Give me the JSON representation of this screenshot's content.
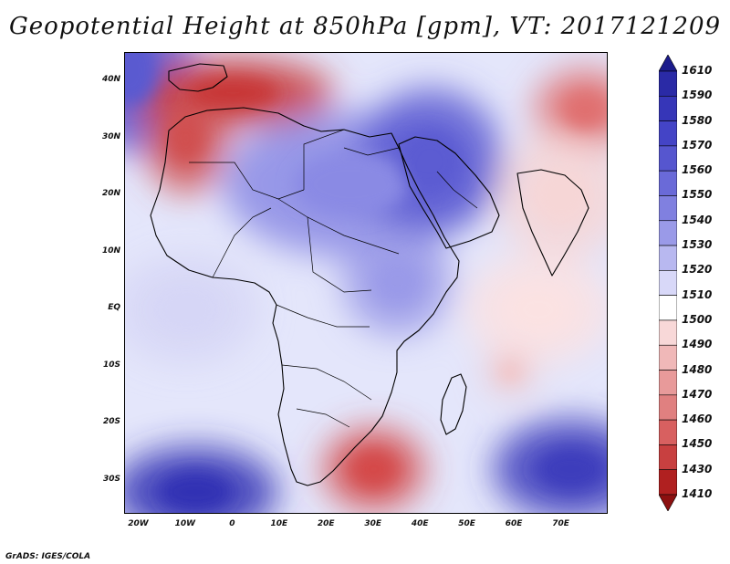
{
  "title": "Geopotential Height at 850hPa [gpm], VT: 2017121209",
  "footer": "GrADS: IGES/COLA",
  "lat_labels": [
    "40N",
    "30N",
    "20N",
    "10N",
    "EQ",
    "10S",
    "20S",
    "30S"
  ],
  "lat_values": [
    40,
    30,
    20,
    10,
    0,
    -10,
    -20,
    -30
  ],
  "lon_labels": [
    "20W",
    "10W",
    "0",
    "10E",
    "20E",
    "30E",
    "40E",
    "50E",
    "60E",
    "70E"
  ],
  "lon_values": [
    -20,
    -10,
    0,
    10,
    20,
    30,
    40,
    50,
    60,
    70
  ],
  "colorbar_labels": [
    "1610",
    "1590",
    "1580",
    "1570",
    "1560",
    "1550",
    "1540",
    "1530",
    "1520",
    "1510",
    "1500",
    "1490",
    "1480",
    "1470",
    "1460",
    "1450",
    "1430",
    "1410"
  ],
  "colorbar_colors": [
    "#1c1c8c",
    "#2a2aa6",
    "#3636b8",
    "#4444c6",
    "#5656cf",
    "#6a6ad8",
    "#8080e0",
    "#9a9ae8",
    "#b8b8f0",
    "#d8d8f8",
    "#ffffff",
    "#f8d8d8",
    "#f0b8b8",
    "#e89a9a",
    "#e08080",
    "#d86060",
    "#c84040",
    "#b02020",
    "#8c1010"
  ],
  "map_fields": {
    "background": "#e4e6fb",
    "blobs": [
      {
        "name": "nw-atlantic-high",
        "lon": -22,
        "lat": 42,
        "color": "#5a5ad0"
      },
      {
        "name": "saharan-high",
        "lon": 25,
        "lat": 22,
        "color": "#8a8ae4"
      },
      {
        "name": "arabian-high",
        "lon": 42,
        "lat": 26,
        "color": "#5c5cd2"
      },
      {
        "name": "east-africa-high",
        "lon": 35,
        "lat": 5,
        "color": "#9a9ae8"
      },
      {
        "name": "north-africa-low",
        "lon": 0,
        "lat": 38,
        "color": "#c83838"
      },
      {
        "name": "moroccan-low",
        "lon": -10,
        "lat": 30,
        "color": "#d05050"
      },
      {
        "name": "himalaya-low",
        "lon": 75,
        "lat": 35,
        "color": "#e07070"
      },
      {
        "name": "india-mild",
        "lon": 70,
        "lat": 20,
        "color": "#f6d6d6"
      },
      {
        "name": "indian-ocean-mild",
        "lon": 65,
        "lat": 0,
        "color": "#fbe2e2"
      },
      {
        "name": "south-africa-low",
        "lon": 30,
        "lat": -28,
        "color": "#d44848"
      },
      {
        "name": "sw-atlantic-high",
        "lon": -8,
        "lat": -32,
        "color": "#3232b4"
      },
      {
        "name": "se-indian-high",
        "lon": 72,
        "lat": -28,
        "color": "#3c3cbc"
      },
      {
        "name": "mozambique-low",
        "lon": 59,
        "lat": -11,
        "color": "#f2c2c2"
      },
      {
        "name": "equatorial-atlantic",
        "lon": -10,
        "lat": 0,
        "color": "#d6d6f6"
      }
    ]
  }
}
